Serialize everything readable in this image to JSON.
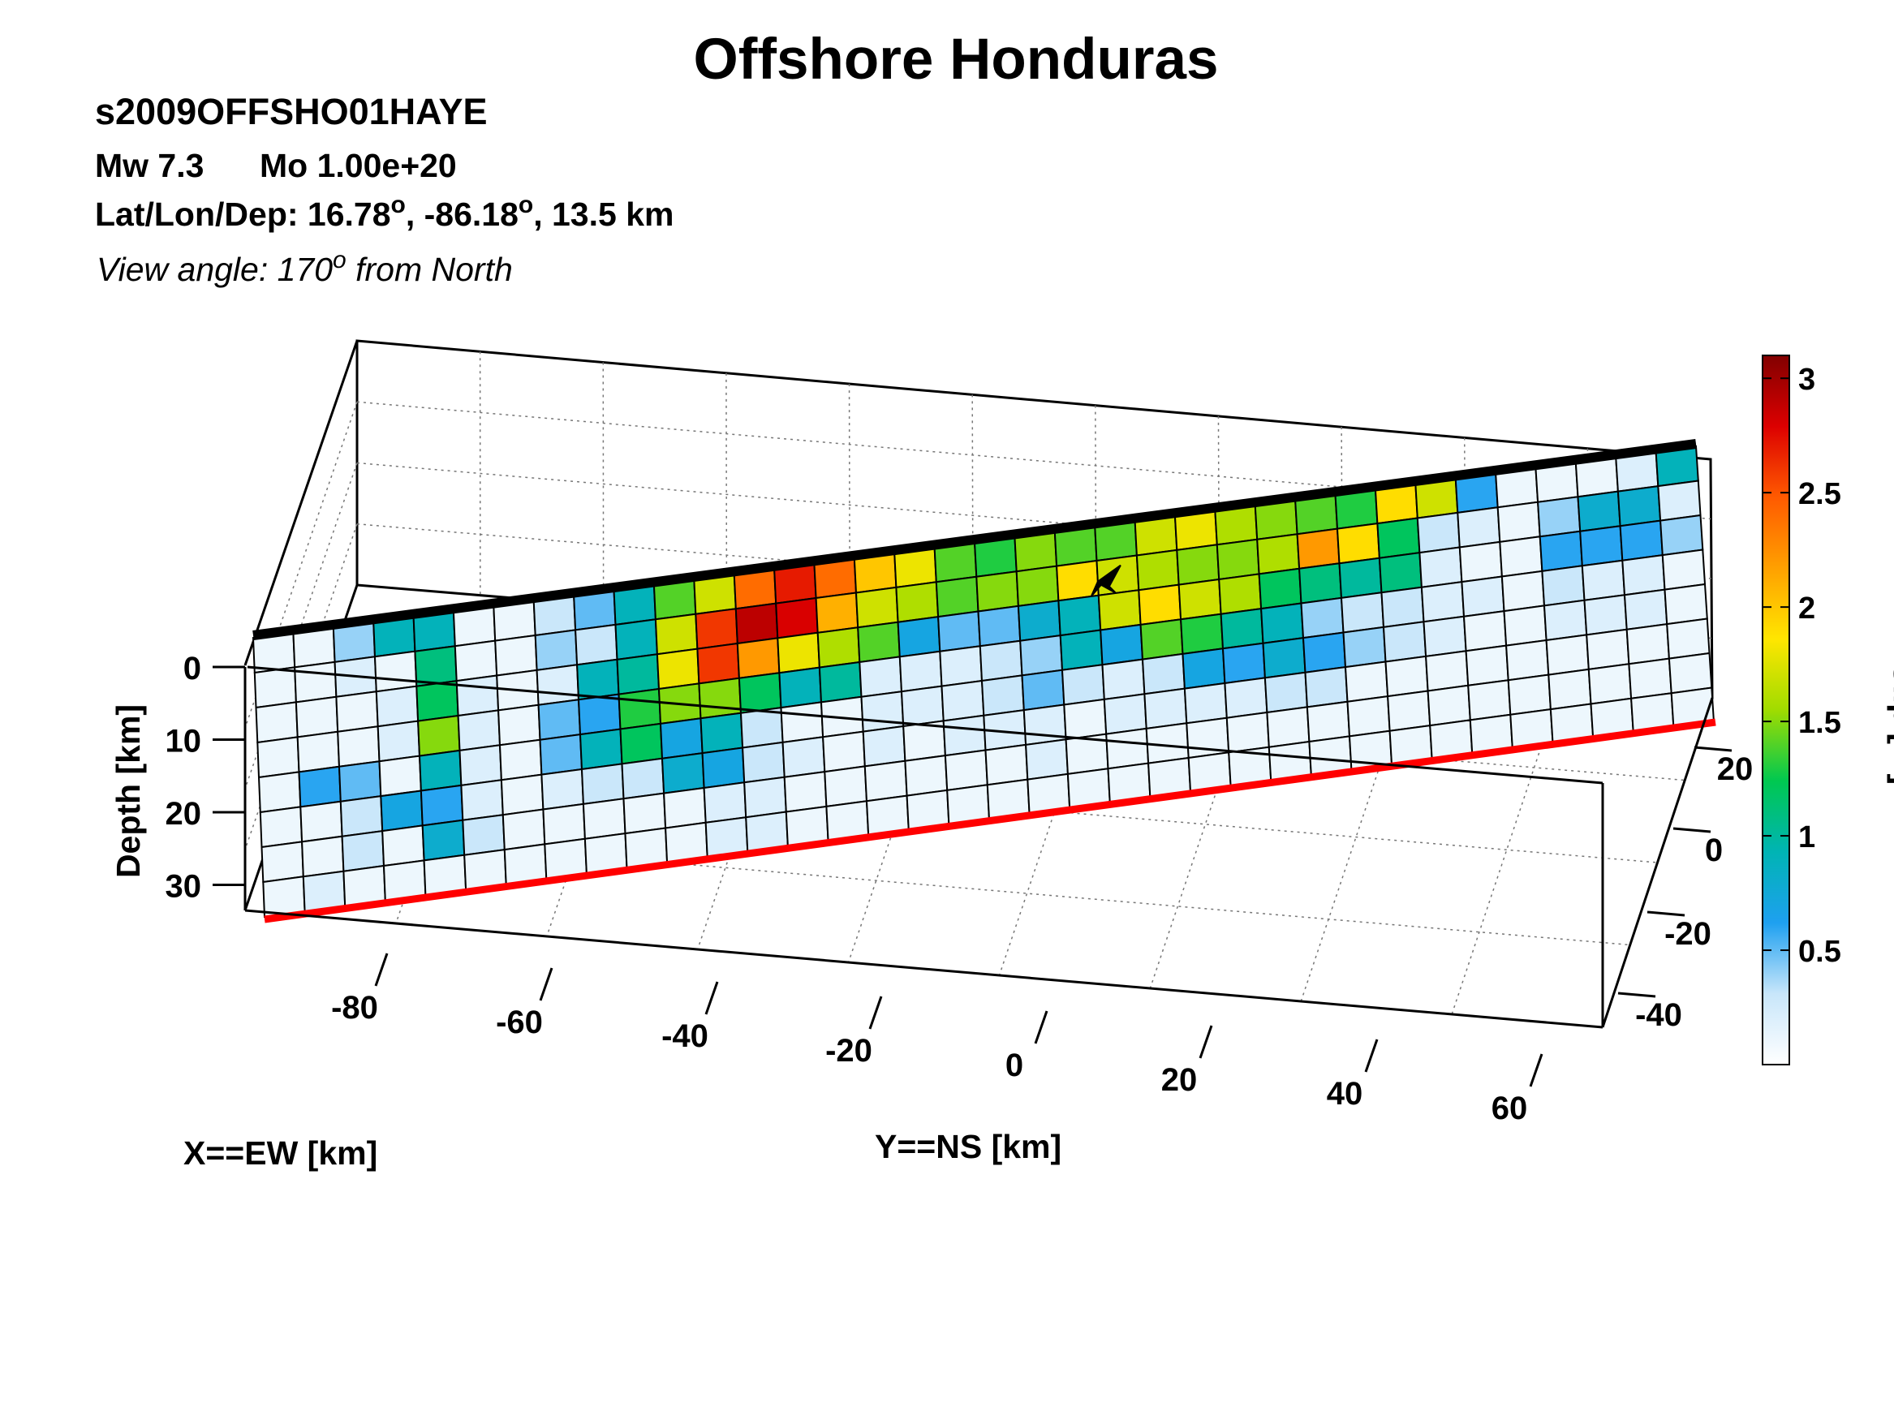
{
  "chart_data": {
    "type": "heatmap",
    "title": "Offshore Honduras",
    "event_id": "s2009OFFSHO01HAYE",
    "magnitude_text": "Mw 7.3",
    "moment_text": "Mo 1.00e+20",
    "location_prefix": "Lat/Lon/Dep: 16.78",
    "location_mid": ", -86.18",
    "location_suffix": ", 13.5 km",
    "degree_symbol": "o",
    "view_prefix": "View angle: 170",
    "view_suffix": " from North",
    "xlabel": "X==EW [km]",
    "ylabel": "Y==NS [km]",
    "zlabel": "Depth [km]",
    "colorbar_label": "Slip [m]",
    "x_ticks": [
      "-80",
      "-60",
      "-40",
      "-20",
      "0",
      "20",
      "40",
      "60"
    ],
    "y_ticks": [
      "20",
      "0",
      "-20",
      "-40"
    ],
    "z_ticks": [
      "0",
      "10",
      "20",
      "30"
    ],
    "colorbar_ticks": [
      "3",
      "2.5",
      "2",
      "1.5",
      "1",
      "0.5"
    ],
    "colorbar_range": [
      0,
      3.1
    ],
    "colormap": [
      "#ffffff",
      "#c8e6fa",
      "#1ea0f0",
      "#00b4b4",
      "#00c850",
      "#a0dc00",
      "#ffe600",
      "#ffa000",
      "#ff5a00",
      "#dc0000",
      "#820000"
    ],
    "fault_top_color": "#000000",
    "fault_bottom_color": "#ff0000",
    "strike_along_km": [
      -90,
      80
    ],
    "depth_range_km": [
      0,
      35
    ],
    "grid_columns": 36,
    "grid_rows": 8,
    "slip_m": [
      [
        0.1,
        0.1,
        0.4,
        0.9,
        0.9,
        0.1,
        0.1,
        0.3,
        0.5,
        0.9,
        1.4,
        1.7,
        2.4,
        2.7,
        2.4,
        2.0,
        1.8,
        1.4,
        1.3,
        1.5,
        1.4,
        1.4,
        1.7,
        1.8,
        1.6,
        1.5,
        1.4,
        1.3,
        1.9,
        1.7,
        0.6,
        0.1,
        0.1,
        0.1,
        0.2,
        0.9
      ],
      [
        0.1,
        0.1,
        0.2,
        0.1,
        1.1,
        0.1,
        0.1,
        0.4,
        0.3,
        0.9,
        1.7,
        2.6,
        2.9,
        2.8,
        2.1,
        1.7,
        1.6,
        1.4,
        1.5,
        1.5,
        1.9,
        1.7,
        1.6,
        1.5,
        1.5,
        1.6,
        2.2,
        1.9,
        1.2,
        0.3,
        0.2,
        0.1,
        0.4,
        0.8,
        0.8,
        0.2
      ],
      [
        0.1,
        0.1,
        0.1,
        0.2,
        1.2,
        0.2,
        0.1,
        0.2,
        0.9,
        1.0,
        1.8,
        2.6,
        2.2,
        1.8,
        1.6,
        1.4,
        0.7,
        0.5,
        0.5,
        0.8,
        0.9,
        1.7,
        1.9,
        1.7,
        1.6,
        1.2,
        1.1,
        1.0,
        1.1,
        0.2,
        0.1,
        0.1,
        0.6,
        0.6,
        0.6,
        0.4
      ],
      [
        0.1,
        0.1,
        0.1,
        0.2,
        1.5,
        0.2,
        0.1,
        0.5,
        0.6,
        1.3,
        1.5,
        1.5,
        1.2,
        0.9,
        1.0,
        0.2,
        0.2,
        0.2,
        0.3,
        0.4,
        0.9,
        0.7,
        1.4,
        1.3,
        1.0,
        0.9,
        0.4,
        0.3,
        0.3,
        0.2,
        0.2,
        0.1,
        0.3,
        0.2,
        0.2,
        0.1
      ],
      [
        0.1,
        0.6,
        0.5,
        0.1,
        0.9,
        0.2,
        0.1,
        0.5,
        0.9,
        1.2,
        0.7,
        0.9,
        0.3,
        0.1,
        0.1,
        0.2,
        0.2,
        0.2,
        0.3,
        0.5,
        0.3,
        0.2,
        0.3,
        0.7,
        0.6,
        0.8,
        0.6,
        0.4,
        0.3,
        0.2,
        0.1,
        0.1,
        0.2,
        0.2,
        0.2,
        0.1
      ],
      [
        0.1,
        0.1,
        0.3,
        0.7,
        0.6,
        0.2,
        0.1,
        0.2,
        0.3,
        0.3,
        0.8,
        0.7,
        0.3,
        0.2,
        0.1,
        0.2,
        0.1,
        0.2,
        0.2,
        0.2,
        0.1,
        0.2,
        0.2,
        0.2,
        0.2,
        0.3,
        0.3,
        0.1,
        0.1,
        0.1,
        0.1,
        0.1,
        0.1,
        0.1,
        0.1,
        0.1
      ],
      [
        0.1,
        0.1,
        0.3,
        0.1,
        0.8,
        0.3,
        0.1,
        0.1,
        0.1,
        0.1,
        0.1,
        0.2,
        0.2,
        0.1,
        0.1,
        0.1,
        0.1,
        0.1,
        0.1,
        0.2,
        0.1,
        0.1,
        0.1,
        0.1,
        0.1,
        0.1,
        0.1,
        0.1,
        0.1,
        0.1,
        0.1,
        0.1,
        0.1,
        0.1,
        0.1,
        0.1
      ],
      [
        0.1,
        0.2,
        0.1,
        0.1,
        0.1,
        0.1,
        0.1,
        0.1,
        0.1,
        0.1,
        0.1,
        0.2,
        0.2,
        0.1,
        0.1,
        0.1,
        0.1,
        0.1,
        0.1,
        0.1,
        0.1,
        0.1,
        0.1,
        0.1,
        0.1,
        0.1,
        0.1,
        0.1,
        0.1,
        0.1,
        0.1,
        0.1,
        0.1,
        0.1,
        0.1,
        0.1
      ]
    ],
    "hypocenter_cell": [
      21,
      1.6
    ],
    "grid": true
  }
}
